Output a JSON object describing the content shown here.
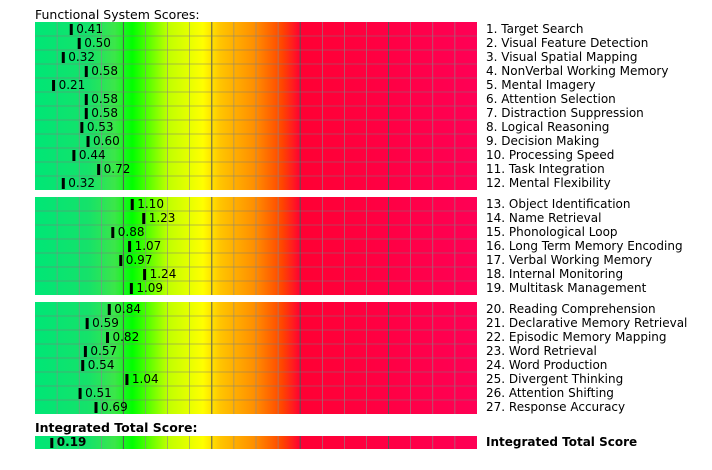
{
  "chart_data": {
    "type": "bar",
    "title": "Functional System Scores:",
    "total_title": "Integrated Total Score:",
    "scale_max": 5,
    "gradient_colors": [
      "#00e676",
      "#15e26a",
      "#3ce64a",
      "#00ff00",
      "#bfff00",
      "#ffff00",
      "#ffc400",
      "#ff8c00",
      "#ff4400",
      "#ff0033",
      "#ff0055"
    ],
    "groups": [
      {
        "items": [
          {
            "label": "1. Target Search",
            "value": 0.41
          },
          {
            "label": "2. Visual Feature Detection",
            "value": 0.5
          },
          {
            "label": "3. Visual Spatial Mapping",
            "value": 0.32
          },
          {
            "label": "4. NonVerbal Working Memory",
            "value": 0.58
          },
          {
            "label": "5. Mental Imagery",
            "value": 0.21
          },
          {
            "label": "6. Attention Selection",
            "value": 0.58
          },
          {
            "label": "7. Distraction Suppression",
            "value": 0.58
          },
          {
            "label": "8. Logical Reasoning",
            "value": 0.53
          },
          {
            "label": "9. Decision Making",
            "value": 0.6
          },
          {
            "label": "10. Processing Speed",
            "value": 0.44
          },
          {
            "label": "11. Task Integration",
            "value": 0.72
          },
          {
            "label": "12. Mental Flexibility",
            "value": 0.32
          }
        ]
      },
      {
        "items": [
          {
            "label": "13. Object Identification",
            "value": 1.1
          },
          {
            "label": "14. Name Retrieval",
            "value": 1.23
          },
          {
            "label": "15. Phonological Loop",
            "value": 0.88
          },
          {
            "label": "16. Long Term Memory Encoding",
            "value": 1.07
          },
          {
            "label": "17. Verbal Working Memory",
            "value": 0.97
          },
          {
            "label": "18. Internal Monitoring",
            "value": 1.24
          },
          {
            "label": "19. Multitask Management",
            "value": 1.09
          }
        ]
      },
      {
        "items": [
          {
            "label": "20. Reading Comprehension",
            "value": 0.84
          },
          {
            "label": "21. Declarative Memory Retrieval",
            "value": 0.59
          },
          {
            "label": "22. Episodic Memory Mapping",
            "value": 0.82
          },
          {
            "label": "23. Word Retrieval",
            "value": 0.57
          },
          {
            "label": "24. Word Production",
            "value": 0.54
          },
          {
            "label": "25. Divergent Thinking",
            "value": 1.04
          },
          {
            "label": "26. Attention Shifting",
            "value": 0.51
          },
          {
            "label": "27. Response Accuracy",
            "value": 0.69
          }
        ]
      }
    ],
    "total": {
      "label": "Integrated Total Score",
      "value": 0.19
    }
  }
}
